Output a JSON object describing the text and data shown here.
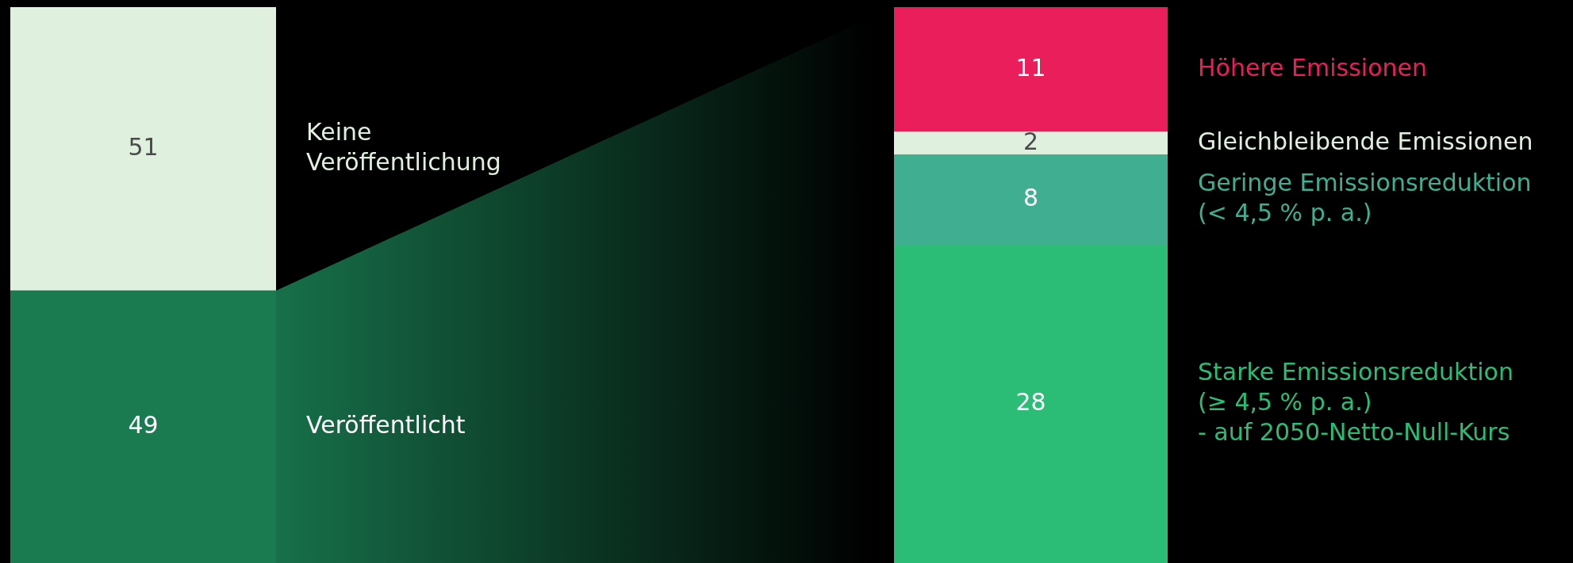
{
  "chart_data": [
    {
      "type": "bar",
      "stacked": true,
      "categories": [
        null
      ],
      "ylim": [
        0,
        100
      ],
      "tick_labels": false,
      "data_labels": true,
      "series": [
        {
          "name": "Veröffentlicht",
          "color": "#1a7a50",
          "values": [
            49
          ]
        },
        {
          "name": "Keine\nVeröffentlichung",
          "color": "#dff0df",
          "values": [
            51
          ]
        }
      ]
    },
    {
      "type": "bar",
      "stacked": true,
      "categories": [
        null
      ],
      "ylim": [
        0,
        49
      ],
      "tick_labels": false,
      "data_labels": true,
      "series": [
        {
          "name": "Starke Emissionsreduktion\n(≥ 4,5 % p. a.)\n- auf 2050-Netto-Null-Kurs",
          "color": "#2bbd75",
          "values": [
            28
          ]
        },
        {
          "name": "Geringe Emissionsreduktion\n(< 4,5 % p. a.)",
          "color": "#40ae90",
          "values": [
            8
          ]
        },
        {
          "name": "Gleichbleibende Emissionen",
          "color": "#dff0df",
          "values": [
            2
          ]
        },
        {
          "name": "Höhere Emissionen",
          "color": "#e91e5a",
          "values": [
            11
          ]
        }
      ]
    }
  ]
}
